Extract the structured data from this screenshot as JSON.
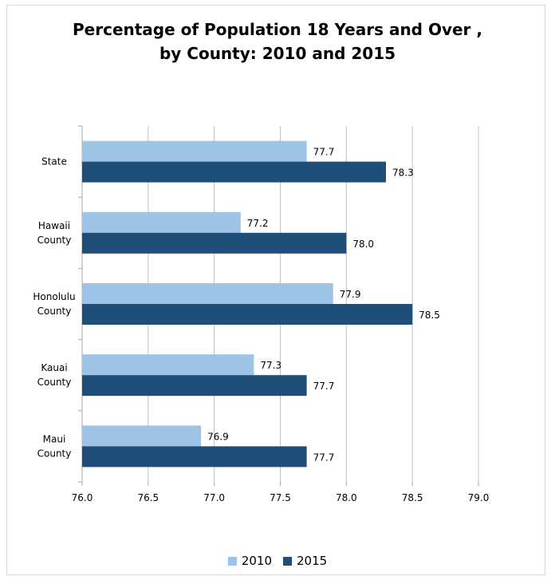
{
  "title_lines": [
    "Percentage of Population 18 Years and Over ,",
    "by County:  2010 and 2015"
  ],
  "chart_data": {
    "type": "bar",
    "orientation": "horizontal",
    "categories": [
      [
        "State"
      ],
      [
        "Hawaii",
        "County"
      ],
      [
        "Honolulu",
        "County"
      ],
      [
        "Kauai",
        "County"
      ],
      [
        "Maui",
        "County"
      ]
    ],
    "series": [
      {
        "name": "2010",
        "values": [
          77.7,
          77.2,
          77.9,
          77.3,
          76.9
        ],
        "labels": [
          "77.7",
          "77.2",
          "77.9",
          "77.3",
          "76.9"
        ],
        "color": "#9dc3e6"
      },
      {
        "name": "2015",
        "values": [
          78.3,
          78.0,
          78.5,
          77.7,
          77.7
        ],
        "labels": [
          "78.3",
          "78.0",
          "78.5",
          "77.7",
          "77.7"
        ],
        "color": "#1f4e79"
      }
    ],
    "xlim": [
      76.0,
      79.0
    ],
    "xticks": [
      "76.0",
      "76.5",
      "77.0",
      "77.5",
      "78.0",
      "78.5",
      "79.0"
    ],
    "grid": true,
    "legend_position": "bottom"
  }
}
